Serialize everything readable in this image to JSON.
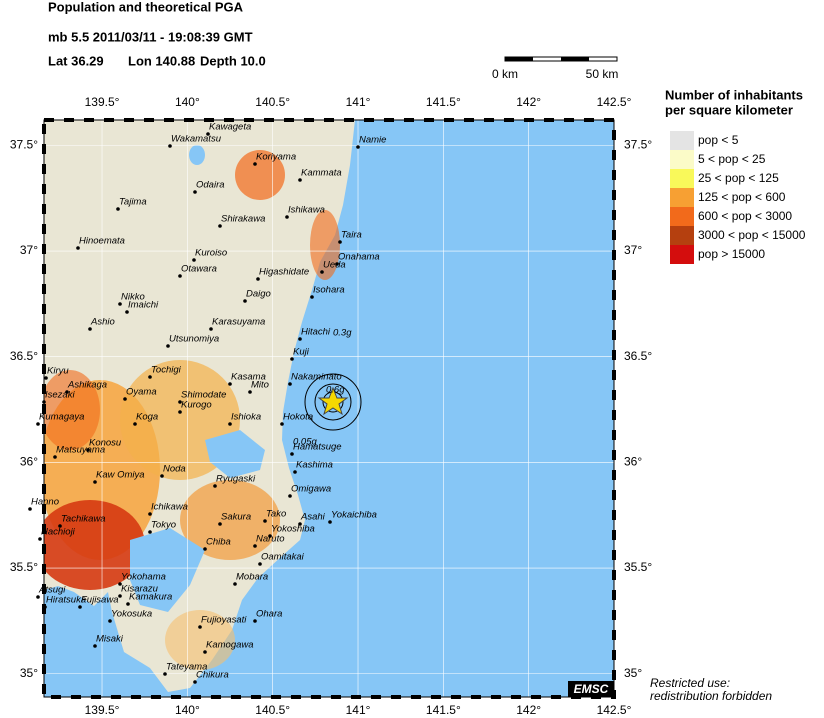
{
  "header": {
    "title": "Population and theoretical PGA",
    "event": "mb 5.5  2011/03/11 - 19:08:39 GMT",
    "lat": "Lat 36.29",
    "lon": "Lon 140.88",
    "depth": "Depth  10.0"
  },
  "scale": {
    "left": "0 km",
    "right": "50 km"
  },
  "legend": {
    "title_lines": [
      "Number of inhabitants",
      "per square kilometer"
    ],
    "items": [
      {
        "label": "pop < 5",
        "color": "#e4e4e4"
      },
      {
        "label": "5 < pop < 25",
        "color": "#fbfbc8"
      },
      {
        "label": "25 < pop < 125",
        "color": "#f9f95a"
      },
      {
        "label": "125 < pop < 600",
        "color": "#f7a033"
      },
      {
        "label": "600 < pop < 3000",
        "color": "#f26a1b"
      },
      {
        "label": "3000 < pop < 15000",
        "color": "#b5400f"
      },
      {
        "label": "pop > 15000",
        "color": "#d40d0d"
      }
    ]
  },
  "map": {
    "xlim": [
      139.16,
      142.5
    ],
    "ylim": [
      34.89,
      37.62
    ],
    "xticks": [
      {
        "value": 139.5,
        "label": "139.5°"
      },
      {
        "value": 140,
        "label": "140°"
      },
      {
        "value": 140.5,
        "label": "140.5°"
      },
      {
        "value": 141,
        "label": "141°"
      },
      {
        "value": 141.5,
        "label": "141.5°"
      },
      {
        "value": 142,
        "label": "142°"
      },
      {
        "value": 142.5,
        "label": "142.5°"
      }
    ],
    "yticks": [
      {
        "value": 35,
        "label": "35°"
      },
      {
        "value": 35.5,
        "label": "35.5°"
      },
      {
        "value": 36,
        "label": "36°"
      },
      {
        "value": 36.5,
        "label": "36.5°"
      },
      {
        "value": 37,
        "label": "37°"
      },
      {
        "value": 37.5,
        "label": "37.5°"
      }
    ],
    "cities": [
      "Kawageta",
      "Wakamatsu",
      "Koriyama",
      "Namie",
      "Odaira",
      "Kammata",
      "Tajima",
      "Ishikawa",
      "Shirakawa",
      "Taira",
      "Hinoemata",
      "Kuroiso",
      "Onahama",
      "Ueda",
      "Higashidate",
      "Otawara",
      "Daigo",
      "Isohara",
      "Nikko",
      "Imaichi",
      "Ashio",
      "Karasuyama",
      "Hitachi",
      "Utsunomiya",
      "Kuji",
      "Kiryu",
      "Tochigi",
      "Ashikaga",
      "Kasama",
      "Mito",
      "Nakaminato",
      "Oyama",
      "Shimodate",
      "Isezaki",
      "Kurogo",
      "Kumagaya",
      "Koga",
      "Ishioka",
      "Hokota",
      "Konosu",
      "Hamatsuge",
      "Matsuyama",
      "Kashima",
      "Kaw Omiya",
      "Noda",
      "Ryugaski",
      "Omigawa",
      "Hanno",
      "Ichikawa",
      "Sakura",
      "Tako",
      "Asahi",
      "Yokaichiba",
      "Tachikawa",
      "Tokyo",
      "Yokoshiba",
      "Hachioji",
      "Chiba",
      "Naruto",
      "Oamitakai",
      "Yokohama",
      "Mobara",
      "Atsugi",
      "Kisarazu",
      "Kamakura",
      "Hiratsuka",
      "Fujisawa",
      "Yokosuka",
      "Ohara",
      "Fujioyasati",
      "Misaki",
      "Kamogawa",
      "Tateyama",
      "Chikura"
    ],
    "pga_labels": [
      "0.3g",
      "0.6g",
      "0.05g"
    ]
  },
  "logo": "EMSC",
  "footer": [
    "Restricted use:",
    "redistribution forbidden"
  ]
}
